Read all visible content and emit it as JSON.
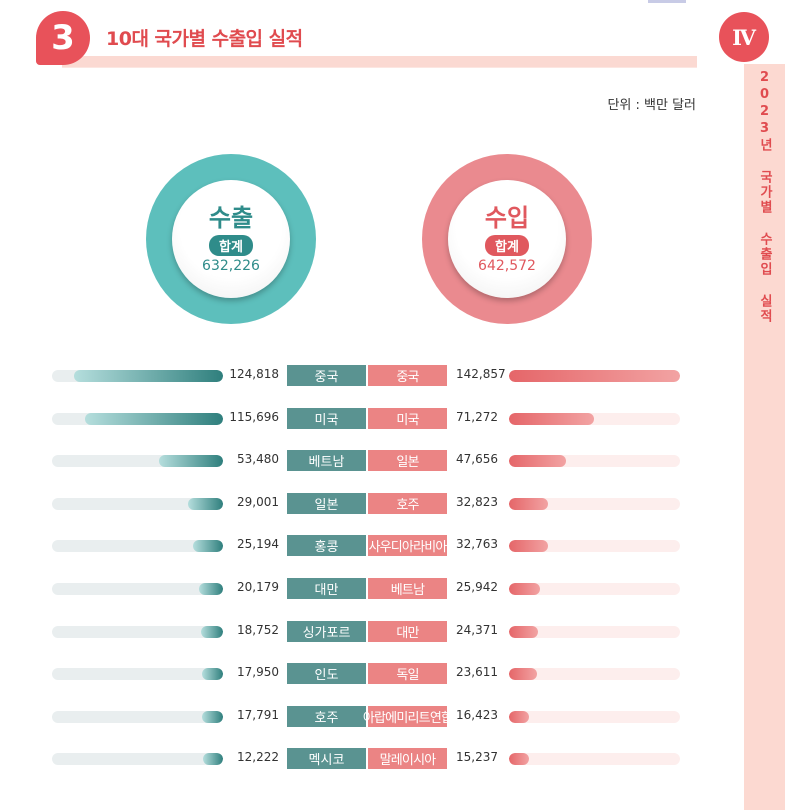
{
  "header": {
    "number": "3",
    "title": "10대 국가별 수출입 실적"
  },
  "side": {
    "roman": "Ⅳ",
    "text": "2023년 국가별 수출입 실적"
  },
  "unit": "단위 : 백만 달러",
  "export": {
    "title": "수출",
    "total_label": "합계",
    "total": "632,226"
  },
  "import": {
    "title": "수입",
    "total_label": "합계",
    "total": "642,572"
  },
  "colors": {
    "accent": "#e8525a",
    "export": "#2f8c8a",
    "import": "#e0585e"
  },
  "max_value": 142857,
  "rows": [
    {
      "exp_country": "중국",
      "exp_value": "124,818",
      "exp_num": 124818,
      "imp_country": "중국",
      "imp_value": "142,857",
      "imp_num": 142857
    },
    {
      "exp_country": "미국",
      "exp_value": "115,696",
      "exp_num": 115696,
      "imp_country": "미국",
      "imp_value": "71,272",
      "imp_num": 71272
    },
    {
      "exp_country": "베트남",
      "exp_value": "53,480",
      "exp_num": 53480,
      "imp_country": "일본",
      "imp_value": "47,656",
      "imp_num": 47656
    },
    {
      "exp_country": "일본",
      "exp_value": "29,001",
      "exp_num": 29001,
      "imp_country": "호주",
      "imp_value": "32,823",
      "imp_num": 32823
    },
    {
      "exp_country": "홍콩",
      "exp_value": "25,194",
      "exp_num": 25194,
      "imp_country": "사우디아라비아",
      "imp_value": "32,763",
      "imp_num": 32763
    },
    {
      "exp_country": "대만",
      "exp_value": "20,179",
      "exp_num": 20179,
      "imp_country": "베트남",
      "imp_value": "25,942",
      "imp_num": 25942
    },
    {
      "exp_country": "싱가포르",
      "exp_value": "18,752",
      "exp_num": 18752,
      "imp_country": "대만",
      "imp_value": "24,371",
      "imp_num": 24371
    },
    {
      "exp_country": "인도",
      "exp_value": "17,950",
      "exp_num": 17950,
      "imp_country": "독일",
      "imp_value": "23,611",
      "imp_num": 23611
    },
    {
      "exp_country": "호주",
      "exp_value": "17,791",
      "exp_num": 17791,
      "imp_country": "아랍에미리트연합",
      "imp_value": "16,423",
      "imp_num": 16423
    },
    {
      "exp_country": "멕시코",
      "exp_value": "12,222",
      "exp_num": 12222,
      "imp_country": "말레이시아",
      "imp_value": "15,237",
      "imp_num": 15237
    }
  ]
}
